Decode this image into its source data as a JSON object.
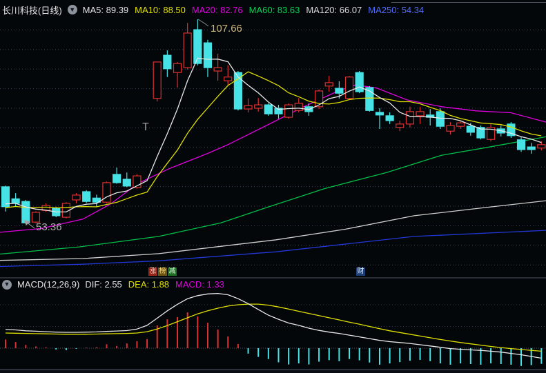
{
  "header": {
    "title": "长川科技(日线)",
    "collapse_icon": "chevron-down",
    "ma_items": [
      {
        "label": "MA5:",
        "value": "89.39",
        "color": "#e2e2e2"
      },
      {
        "label": "MA10:",
        "value": "88.50",
        "color": "#e0e000"
      },
      {
        "label": "MA20:",
        "value": "82.76",
        "color": "#e000e0"
      },
      {
        "label": "MA60:",
        "value": "83.63",
        "color": "#00d455"
      },
      {
        "label": "MA120:",
        "value": "66.07",
        "color": "#d8d8d8"
      },
      {
        "label": "MA250:",
        "value": "54.34",
        "color": "#4f6bff"
      }
    ]
  },
  "macd_header": {
    "title": "MACD(12,26,9)",
    "collapse_icon": "chevron-down",
    "items": [
      {
        "label": "DIF:",
        "value": "2.55",
        "color": "#e2e2e2"
      },
      {
        "label": "DEA:",
        "value": "1.88",
        "color": "#e0e000"
      },
      {
        "label": "MACD:",
        "value": "1.33",
        "color": "#e000e0"
      }
    ]
  },
  "annotations": {
    "high_label": "107.66",
    "low_label": "53.36",
    "suspension_marker": "T",
    "event_badges": [
      {
        "text": "涨",
        "bg": "#97251a",
        "fg": "#f4c8bb"
      },
      {
        "text": "榜",
        "bg": "#6e5312",
        "fg": "#f0d879"
      },
      {
        "text": "减",
        "bg": "#1d6e24",
        "fg": "#d9f2d6"
      }
    ],
    "right_badge": {
      "text": "财",
      "bg": "#1c3e74",
      "fg": "#e8f0ff"
    }
  },
  "chart_data": [
    {
      "type": "candlestick",
      "title": "长川科技 日线 K线图",
      "up_color": "#df3031",
      "down_color": "#46e2e6",
      "price_anchors": {
        "high_price": 107.66,
        "low_price": 53.36
      },
      "high_index": 19,
      "low_index": 2,
      "suspension": {
        "index": 14,
        "price": 78.9
      },
      "prehistory_closes": [
        55,
        55.5,
        56,
        56.5,
        57,
        57.5,
        58,
        58.5,
        59,
        59.5
      ],
      "candles": [
        [
          63.1,
          63.4,
          56.5,
          57.8
        ],
        [
          59.9,
          61.4,
          57.8,
          58.7
        ],
        [
          59.2,
          59.6,
          53.36,
          53.5
        ],
        [
          53.7,
          56.6,
          53.4,
          56.3
        ],
        [
          56.8,
          58.7,
          56.4,
          58.1
        ],
        [
          57.4,
          57.8,
          55.0,
          55.4
        ],
        [
          55.0,
          59.0,
          54.7,
          58.7
        ],
        [
          59.6,
          61.4,
          58.7,
          60.9
        ],
        [
          61.8,
          62.2,
          58.8,
          59.2
        ],
        [
          60.1,
          61.0,
          57.8,
          59.0
        ],
        [
          59.0,
          64.5,
          58.7,
          64.2
        ],
        [
          66.4,
          68.2,
          63.9,
          64.2
        ],
        [
          65.1,
          66.9,
          63.0,
          63.3
        ],
        [
          62.9,
          66.4,
          62.6,
          66.0
        ],
        null,
        [
          86.6,
          96.3,
          85.8,
          96.3
        ],
        [
          98.1,
          99.4,
          92.3,
          94.5
        ],
        [
          93.5,
          96.3,
          89.5,
          95.9
        ],
        [
          94.8,
          106.7,
          94.3,
          104.0
        ],
        [
          104.9,
          107.66,
          95.4,
          95.9
        ],
        [
          101.4,
          102.2,
          92.3,
          94.8
        ],
        [
          93.9,
          98.5,
          91.3,
          94.8
        ],
        [
          91.3,
          95.4,
          90.2,
          92.3
        ],
        [
          93.5,
          93.9,
          83.4,
          83.8
        ],
        [
          83.8,
          86.6,
          82.9,
          84.7
        ],
        [
          84.0,
          86.7,
          83.1,
          84.9
        ],
        [
          84.9,
          85.3,
          82.0,
          82.5
        ],
        [
          84.0,
          84.9,
          81.2,
          82.5
        ],
        [
          81.6,
          85.3,
          81.2,
          84.9
        ],
        [
          83.4,
          86.7,
          82.9,
          85.3
        ],
        [
          84.4,
          85.3,
          82.0,
          83.1
        ],
        [
          84.4,
          89.0,
          83.8,
          88.6
        ],
        [
          89.9,
          92.6,
          88.4,
          90.8
        ],
        [
          89.3,
          91.2,
          86.6,
          88.0
        ],
        [
          86.6,
          92.6,
          86.2,
          92.3
        ],
        [
          93.5,
          93.9,
          88.0,
          88.4
        ],
        [
          89.5,
          89.9,
          83.1,
          83.4
        ],
        [
          82.9,
          84.0,
          78.5,
          82.2
        ],
        [
          82.0,
          82.9,
          79.8,
          80.7
        ],
        [
          78.9,
          80.7,
          77.9,
          79.8
        ],
        [
          79.8,
          84.4,
          78.9,
          83.1
        ],
        [
          82.0,
          84.4,
          79.8,
          83.1
        ],
        [
          82.2,
          83.8,
          79.4,
          81.6
        ],
        [
          83.1,
          84.0,
          78.5,
          79.2
        ],
        [
          77.9,
          80.3,
          77.0,
          79.4
        ],
        [
          79.2,
          80.7,
          78.5,
          80.1
        ],
        [
          79.2,
          80.1,
          76.7,
          77.6
        ],
        [
          78.9,
          79.4,
          75.7,
          76.1
        ],
        [
          75.7,
          79.8,
          75.2,
          78.9
        ],
        [
          78.5,
          79.4,
          76.5,
          77.4
        ],
        [
          79.8,
          80.3,
          76.1,
          76.7
        ],
        [
          75.6,
          76.5,
          72.4,
          73.0
        ],
        [
          73.7,
          74.8,
          71.9,
          73.0
        ],
        [
          73.4,
          75.2,
          72.8,
          74.3
        ]
      ],
      "ma_colors": {
        "ma5": "#e8e8e8",
        "ma10": "#e0e000",
        "ma20": "#e000e0",
        "ma60": "#00c04a",
        "ma120": "#cfcfcf",
        "ma250": "#2238d6"
      },
      "ma_overlays": {
        "ma20": [
          [
            0,
            51.0
          ],
          [
            60,
            52.0
          ],
          [
            120,
            54.5
          ],
          [
            160,
            58.5
          ],
          [
            200,
            64.0
          ],
          [
            245,
            67.9
          ],
          [
            300,
            71.9
          ],
          [
            330,
            74.3
          ],
          [
            400,
            80.7
          ],
          [
            440,
            84.4
          ],
          [
            490,
            88.6
          ],
          [
            515,
            90.2
          ],
          [
            545,
            89.4
          ],
          [
            590,
            86.2
          ],
          [
            640,
            84.4
          ],
          [
            690,
            83.3
          ],
          [
            740,
            82.8
          ],
          [
            791,
            80.3
          ]
        ],
        "ma60": [
          [
            0,
            45.2
          ],
          [
            115,
            47.1
          ],
          [
            230,
            49.9
          ],
          [
            320,
            53.5
          ],
          [
            390,
            57.8
          ],
          [
            470,
            62.6
          ],
          [
            560,
            66.9
          ],
          [
            640,
            71.5
          ],
          [
            700,
            73.4
          ],
          [
            791,
            76.4
          ]
        ],
        "ma120": [
          [
            0,
            43.5
          ],
          [
            120,
            44.0
          ],
          [
            230,
            45.3
          ],
          [
            400,
            49.0
          ],
          [
            500,
            51.8
          ],
          [
            600,
            55.4
          ],
          [
            700,
            57.5
          ],
          [
            791,
            59.4
          ]
        ],
        "ma250": [
          [
            0,
            41.9
          ],
          [
            120,
            42.5
          ],
          [
            230,
            43.4
          ],
          [
            400,
            45.8
          ],
          [
            600,
            49.9
          ],
          [
            791,
            51.5
          ]
        ]
      }
    },
    {
      "type": "macd",
      "params": "12,26,9",
      "dif_color": "#e8e8e8",
      "dea_color": "#e0e000",
      "hist_up_color": "#df3031",
      "hist_down_color": "#46e2e6",
      "dif": [
        0.86,
        0.84,
        0.8,
        0.78,
        0.76,
        0.74,
        0.73,
        0.73,
        0.74,
        0.75,
        0.77,
        0.79,
        0.81,
        0.88,
        1.05,
        1.38,
        1.72,
        2.02,
        2.28,
        2.42,
        2.5,
        2.52,
        2.46,
        2.28,
        2.05,
        1.78,
        1.52,
        1.33,
        1.16,
        1.05,
        0.92,
        0.82,
        0.74,
        0.68,
        0.6,
        0.52,
        0.44,
        0.36,
        0.3,
        0.26,
        0.22,
        0.16,
        0.1,
        0.04,
        -0.02,
        -0.05,
        -0.08,
        -0.1,
        -0.14,
        -0.18,
        -0.24,
        -0.3,
        -0.38,
        -0.46
      ],
      "dea": [
        0.7,
        0.69,
        0.68,
        0.67,
        0.66,
        0.65,
        0.64,
        0.64,
        0.64,
        0.65,
        0.66,
        0.67,
        0.68,
        0.7,
        0.76,
        0.88,
        1.04,
        1.22,
        1.4,
        1.58,
        1.72,
        1.84,
        1.94,
        2.0,
        2.03,
        2.03,
        1.98,
        1.9,
        1.8,
        1.7,
        1.6,
        1.5,
        1.4,
        1.3,
        1.2,
        1.1,
        1.0,
        0.9,
        0.8,
        0.72,
        0.64,
        0.56,
        0.48,
        0.4,
        0.33,
        0.26,
        0.2,
        0.14,
        0.08,
        0.03,
        -0.02,
        -0.06,
        -0.1,
        -0.14
      ],
      "hist": [
        0.4,
        0.28,
        0.15,
        0.08,
        0.04,
        -0.06,
        -0.09,
        -0.03,
        0.02,
        0.04,
        0.18,
        0.1,
        0.22,
        0.32,
        0.42,
        1.05,
        1.33,
        1.43,
        1.65,
        1.46,
        1.17,
        0.86,
        0.54,
        0.19,
        -0.25,
        -0.4,
        -0.5,
        -0.65,
        -0.75,
        -0.7,
        -0.75,
        -0.62,
        -0.55,
        -0.6,
        -0.5,
        -0.56,
        -0.66,
        -0.76,
        -0.7,
        -0.64,
        -0.58,
        -0.54,
        -0.6,
        -0.7,
        -0.76,
        -0.7,
        -0.73,
        -0.76,
        -0.7,
        -0.73,
        -0.76,
        -0.82,
        -0.78,
        -0.72
      ]
    }
  ],
  "colors": {
    "background": "#040709",
    "grid": "#3c4250",
    "divider": "#272c35",
    "annotation_high": "#cdb97e",
    "annotation_low": "#aeaeae"
  }
}
